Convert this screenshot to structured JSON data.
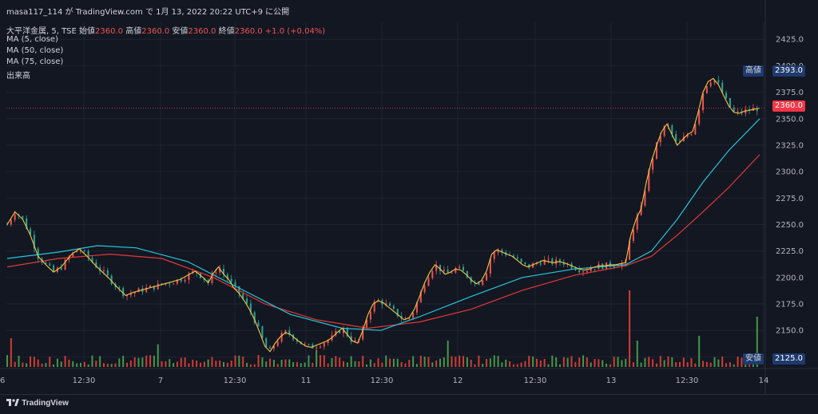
{
  "publisher_line": "masa117_114 が TradingView.com で 1月 13, 2022 20:22 UTC+9 に公開",
  "symbol": {
    "name": "大平洋金属, 5, TSE",
    "open_label": "始値",
    "open": "2360.0",
    "high_label": "高値",
    "high": "2360.0",
    "low_label": "安値",
    "low": "2360.0",
    "close_label": "終値",
    "close": "2360.0",
    "change": "+1.0 (+0.04%)"
  },
  "indicators": [
    "MA (5, close)",
    "MA (50, close)",
    "MA (75, close)",
    "出来高"
  ],
  "footer_brand": "TradingView",
  "colors": {
    "background": "#131722",
    "up": "#ef5350",
    "down": "#26a69a",
    "vol_up": "#f44336",
    "vol_down": "#4caf50",
    "ma5": "#f5c542",
    "ma50": "#26c6da",
    "ma75": "#e53935",
    "last_price": "#f23645",
    "tag_bg": "#1e3a6e"
  },
  "price_tags": {
    "high": {
      "label": "高値",
      "value": "2393.0"
    },
    "last": {
      "value": "2360.0"
    },
    "low": {
      "label": "安値",
      "value": "2125.0"
    }
  },
  "chart_data": {
    "type": "candlestick",
    "y_axis": {
      "ticks": [
        "2425.0",
        "2400.0",
        "2375.0",
        "2350.0",
        "2325.0",
        "2300.0",
        "2275.0",
        "2250.0",
        "2225.0",
        "2200.0",
        "2175.0",
        "2150.0",
        "2125.0"
      ],
      "ylim": [
        2117,
        2441
      ]
    },
    "x_axis": {
      "ticks": [
        "6",
        "12:30",
        "7",
        "12:30",
        "11",
        "12:30",
        "12",
        "12:30",
        "13",
        "12:30",
        "14"
      ]
    },
    "grid": true,
    "last_price": 2360.0,
    "session_highs_lows": {
      "high": 2393.0,
      "low": 2125.0
    },
    "price_path": [
      [
        0,
        2250
      ],
      [
        6,
        2262
      ],
      [
        12,
        2255
      ],
      [
        18,
        2240
      ],
      [
        24,
        2220
      ],
      [
        30,
        2212
      ],
      [
        36,
        2205
      ],
      [
        42,
        2210
      ],
      [
        50,
        2222
      ],
      [
        56,
        2227
      ],
      [
        62,
        2220
      ],
      [
        68,
        2212
      ],
      [
        74,
        2205
      ],
      [
        80,
        2198
      ],
      [
        86,
        2190
      ],
      [
        92,
        2183
      ],
      [
        98,
        2186
      ],
      [
        104,
        2188
      ],
      [
        110,
        2190
      ],
      [
        116,
        2192
      ],
      [
        122,
        2194
      ],
      [
        128,
        2196
      ],
      [
        134,
        2198
      ],
      [
        140,
        2202
      ],
      [
        146,
        2206
      ],
      [
        152,
        2200
      ],
      [
        156,
        2195
      ],
      [
        160,
        2204
      ],
      [
        164,
        2210
      ],
      [
        168,
        2203
      ],
      [
        172,
        2198
      ],
      [
        176,
        2190
      ],
      [
        180,
        2185
      ],
      [
        184,
        2178
      ],
      [
        188,
        2170
      ],
      [
        192,
        2160
      ],
      [
        196,
        2148
      ],
      [
        200,
        2135
      ],
      [
        204,
        2130
      ],
      [
        208,
        2138
      ],
      [
        212,
        2144
      ],
      [
        216,
        2148
      ],
      [
        220,
        2146
      ],
      [
        224,
        2142
      ],
      [
        228,
        2138
      ],
      [
        232,
        2135
      ],
      [
        236,
        2134
      ],
      [
        240,
        2136
      ],
      [
        244,
        2138
      ],
      [
        248,
        2140
      ],
      [
        252,
        2143
      ],
      [
        256,
        2148
      ],
      [
        260,
        2152
      ],
      [
        264,
        2146
      ],
      [
        268,
        2140
      ],
      [
        272,
        2138
      ],
      [
        276,
        2150
      ],
      [
        280,
        2165
      ],
      [
        284,
        2175
      ],
      [
        288,
        2178
      ],
      [
        292,
        2176
      ],
      [
        296,
        2172
      ],
      [
        300,
        2168
      ],
      [
        304,
        2164
      ],
      [
        308,
        2160
      ],
      [
        312,
        2162
      ],
      [
        316,
        2170
      ],
      [
        320,
        2182
      ],
      [
        324,
        2195
      ],
      [
        328,
        2205
      ],
      [
        332,
        2212
      ],
      [
        336,
        2208
      ],
      [
        340,
        2203
      ],
      [
        344,
        2205
      ],
      [
        348,
        2208
      ],
      [
        352,
        2207
      ],
      [
        356,
        2203
      ],
      [
        360,
        2198
      ],
      [
        364,
        2194
      ],
      [
        368,
        2197
      ],
      [
        372,
        2206
      ],
      [
        376,
        2222
      ],
      [
        380,
        2226
      ],
      [
        384,
        2224
      ],
      [
        388,
        2222
      ],
      [
        392,
        2220
      ],
      [
        396,
        2216
      ],
      [
        400,
        2212
      ],
      [
        404,
        2210
      ],
      [
        408,
        2212
      ],
      [
        412,
        2214
      ],
      [
        416,
        2216
      ],
      [
        420,
        2215
      ],
      [
        424,
        2214
      ],
      [
        428,
        2215
      ],
      [
        432,
        2214
      ],
      [
        436,
        2212
      ],
      [
        440,
        2210
      ],
      [
        444,
        2208
      ],
      [
        448,
        2207
      ],
      [
        452,
        2208
      ],
      [
        456,
        2210
      ],
      [
        460,
        2211
      ],
      [
        464,
        2211
      ],
      [
        468,
        2212
      ],
      [
        472,
        2212
      ],
      [
        476,
        2213
      ],
      [
        480,
        2214
      ],
      [
        484,
        2240
      ],
      [
        488,
        2255
      ],
      [
        492,
        2265
      ],
      [
        496,
        2290
      ],
      [
        500,
        2310
      ],
      [
        504,
        2325
      ],
      [
        508,
        2338
      ],
      [
        512,
        2345
      ],
      [
        516,
        2335
      ],
      [
        520,
        2325
      ],
      [
        524,
        2330
      ],
      [
        528,
        2335
      ],
      [
        532,
        2338
      ],
      [
        536,
        2355
      ],
      [
        540,
        2375
      ],
      [
        544,
        2385
      ],
      [
        548,
        2388
      ],
      [
        552,
        2382
      ],
      [
        556,
        2372
      ],
      [
        560,
        2362
      ],
      [
        564,
        2356
      ],
      [
        568,
        2355
      ],
      [
        572,
        2357
      ],
      [
        576,
        2358
      ],
      [
        580,
        2359
      ],
      [
        584,
        2360
      ]
    ],
    "ma50_path": [
      [
        0,
        2218
      ],
      [
        40,
        2224
      ],
      [
        70,
        2230
      ],
      [
        100,
        2228
      ],
      [
        140,
        2215
      ],
      [
        180,
        2190
      ],
      [
        220,
        2165
      ],
      [
        260,
        2152
      ],
      [
        290,
        2150
      ],
      [
        320,
        2163
      ],
      [
        360,
        2182
      ],
      [
        400,
        2200
      ],
      [
        440,
        2208
      ],
      [
        480,
        2212
      ],
      [
        500,
        2225
      ],
      [
        520,
        2255
      ],
      [
        540,
        2290
      ],
      [
        560,
        2320
      ],
      [
        584,
        2350
      ]
    ],
    "ma75_path": [
      [
        0,
        2210
      ],
      [
        40,
        2218
      ],
      [
        80,
        2222
      ],
      [
        120,
        2218
      ],
      [
        160,
        2200
      ],
      [
        200,
        2175
      ],
      [
        240,
        2160
      ],
      [
        280,
        2152
      ],
      [
        320,
        2158
      ],
      [
        360,
        2170
      ],
      [
        400,
        2188
      ],
      [
        440,
        2202
      ],
      [
        480,
        2211
      ],
      [
        500,
        2220
      ],
      [
        520,
        2240
      ],
      [
        540,
        2262
      ],
      [
        560,
        2285
      ],
      [
        584,
        2316
      ]
    ],
    "volume_spikes": [
      {
        "x": 4,
        "h": 0.24
      },
      {
        "x": 118,
        "h": 0.19
      },
      {
        "x": 196,
        "h": 0.1
      },
      {
        "x": 240,
        "h": 0.14
      },
      {
        "x": 343,
        "h": 0.22
      },
      {
        "x": 482,
        "h": 0.64
      },
      {
        "x": 488,
        "h": 0.22
      },
      {
        "x": 538,
        "h": 0.26
      },
      {
        "x": 582,
        "h": 0.42
      }
    ]
  }
}
